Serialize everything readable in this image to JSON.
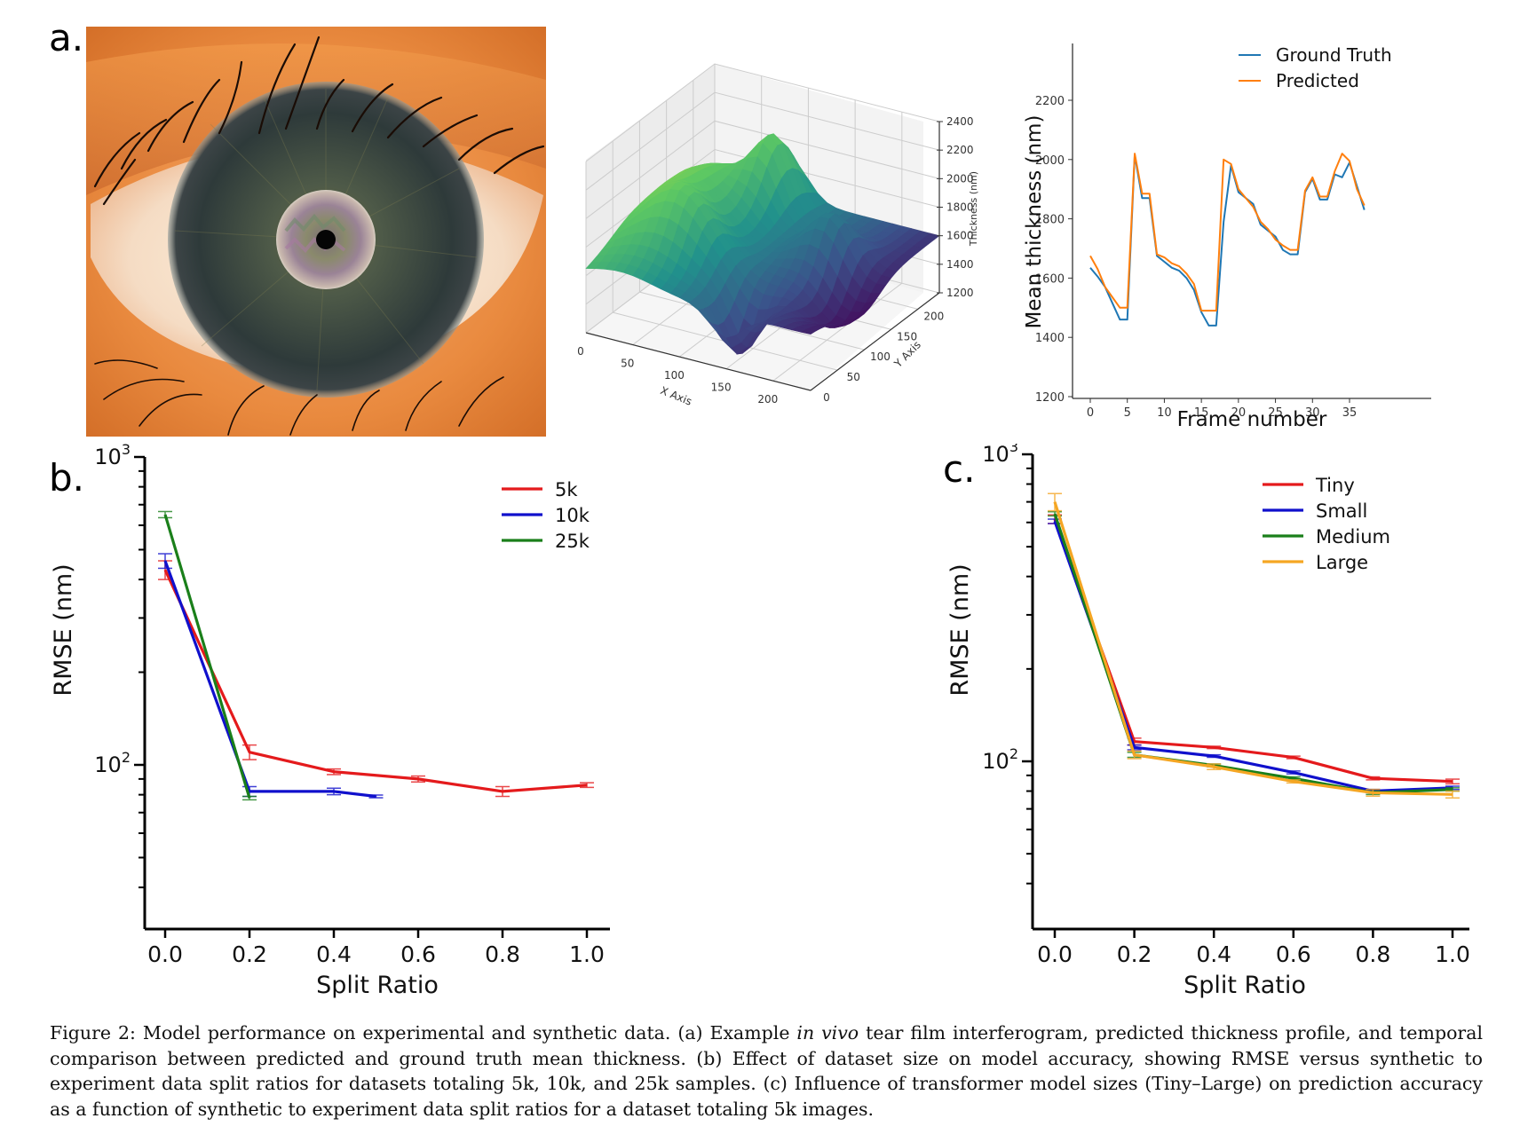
{
  "figure": {
    "panel_labels": {
      "a": "a.",
      "b": "b.",
      "c": "c."
    },
    "caption": {
      "lead": "Figure 2: Model performance on experimental and synthetic data. (a) Example ",
      "italic": "in vivo",
      "rest": " tear film interferogram, predicted thickness profile, and temporal comparison between predicted and ground truth mean thickness. (b) Effect of dataset size on model accuracy, showing RMSE versus synthetic to experiment data split ratios for datasets totaling 5k, 10k, and 25k samples. (c) Influence of transformer model sizes (Tiny–Large) on prediction accuracy as a function of synthetic to experiment data split ratios for a dataset totaling 5k images."
    },
    "eye_image": {
      "description": "in vivo tear film interferogram over eye photograph"
    }
  },
  "colors": {
    "ground_truth": "#1f77b4",
    "predicted": "#ff7f0e",
    "red": "#e41a1c",
    "blue": "#1010cc",
    "green": "#1a7f1a",
    "orange": "#f5a623"
  },
  "chart_data": [
    {
      "id": "a-surface",
      "type": "heatmap",
      "title": "",
      "xlabel": "X Axis",
      "ylabel": "Y Axis",
      "zlabel": "Thickness (nm)",
      "x_ticks": [
        "0",
        "50",
        "100",
        "150",
        "200"
      ],
      "y_ticks": [
        "0",
        "50",
        "100",
        "150",
        "200"
      ],
      "z_ticks": [
        "1200",
        "1400",
        "1600",
        "1800",
        "2000",
        "2200",
        "2400"
      ],
      "xlim": [
        0,
        240
      ],
      "ylim": [
        0,
        240
      ],
      "zlim": [
        1200,
        2400
      ],
      "colormap": "viridis",
      "note": "3D surface of predicted thickness profile"
    },
    {
      "id": "a-line",
      "type": "line",
      "title": "",
      "xlabel": "Frame number",
      "ylabel": "Mean thickness (nm)",
      "xlim": [
        -1.5,
        38.5
      ],
      "ylim": [
        1200,
        2380
      ],
      "x_ticks": [
        0,
        5,
        10,
        15,
        20,
        25,
        30,
        35
      ],
      "y_ticks": [
        1200,
        1400,
        1600,
        1800,
        2000,
        2200
      ],
      "legend": "top-right",
      "x": [
        0,
        1,
        2,
        3,
        4,
        5,
        6,
        7,
        8,
        9,
        10,
        11,
        12,
        13,
        14,
        15,
        16,
        17,
        18,
        19,
        20,
        21,
        22,
        23,
        24,
        25,
        26,
        27,
        28,
        29,
        30,
        31,
        32,
        33,
        34,
        35,
        36,
        37
      ],
      "series": [
        {
          "name": "Ground Truth",
          "color_key": "ground_truth",
          "values": [
            1635,
            1605,
            1570,
            1515,
            1460,
            1460,
            2015,
            1870,
            1870,
            1675,
            1655,
            1635,
            1625,
            1600,
            1560,
            1485,
            1440,
            1440,
            1790,
            1980,
            1890,
            1870,
            1850,
            1780,
            1760,
            1740,
            1695,
            1680,
            1680,
            1890,
            1935,
            1865,
            1865,
            1950,
            1940,
            1990,
            1910,
            1830
          ]
        },
        {
          "name": "Predicted",
          "color_key": "predicted",
          "values": [
            1675,
            1630,
            1570,
            1535,
            1500,
            1500,
            2020,
            1885,
            1885,
            1680,
            1670,
            1650,
            1640,
            1615,
            1580,
            1490,
            1490,
            1490,
            2000,
            1985,
            1900,
            1870,
            1840,
            1790,
            1765,
            1730,
            1710,
            1695,
            1695,
            1895,
            1940,
            1875,
            1875,
            1960,
            2020,
            1995,
            1900,
            1845
          ]
        }
      ]
    },
    {
      "id": "b",
      "type": "line",
      "title": "",
      "xlabel": "Split Ratio",
      "ylabel": "RMSE (nm)",
      "yscale": "log",
      "xlim": [
        -0.05,
        1.05
      ],
      "ylim": [
        30,
        1000
      ],
      "x_ticks": [
        "0.0",
        "0.2",
        "0.4",
        "0.6",
        "0.8",
        "1.0"
      ],
      "y_ticks_major": [
        {
          "value": 100,
          "base": "10",
          "exp": "2"
        },
        {
          "value": 1000,
          "base": "10",
          "exp": "3"
        }
      ],
      "legend": "top-right",
      "series": [
        {
          "name": "5k",
          "color_key": "red",
          "x": [
            0.0,
            0.2,
            0.4,
            0.6,
            0.8,
            1.0
          ],
          "values": [
            430,
            110,
            95,
            90,
            82,
            86
          ],
          "err": [
            30,
            6,
            2,
            2,
            3,
            1.5
          ]
        },
        {
          "name": "10k",
          "color_key": "blue",
          "x": [
            0.0,
            0.2,
            0.4,
            0.5
          ],
          "values": [
            460,
            82,
            82,
            79
          ],
          "err": [
            25,
            3,
            2,
            0.8
          ]
        },
        {
          "name": "25k",
          "color_key": "green",
          "x": [
            0.0,
            0.2
          ],
          "values": [
            650,
            78
          ],
          "err": [
            15,
            1
          ]
        }
      ]
    },
    {
      "id": "c",
      "type": "line",
      "title": "",
      "xlabel": "Split Ratio",
      "ylabel": "RMSE (nm)",
      "yscale": "log",
      "xlim": [
        -0.05,
        1.05
      ],
      "ylim": [
        30,
        1000
      ],
      "x_ticks": [
        "0.0",
        "0.2",
        "0.4",
        "0.6",
        "0.8",
        "1.0"
      ],
      "y_ticks_major": [
        {
          "value": 100,
          "base": "10",
          "exp": "2"
        },
        {
          "value": 1000,
          "base": "10",
          "exp": "3"
        }
      ],
      "legend": "top-right",
      "series": [
        {
          "name": "Tiny",
          "color_key": "red",
          "x": [
            0.0,
            0.2,
            0.4,
            0.6,
            0.8,
            1.0
          ],
          "values": [
            615,
            116,
            111,
            103,
            88,
            86
          ],
          "err": [
            20,
            3,
            1,
            1,
            1,
            1.5
          ]
        },
        {
          "name": "Small",
          "color_key": "blue",
          "x": [
            0.0,
            0.2,
            0.4,
            0.6,
            0.8,
            1.0
          ],
          "values": [
            605,
            111,
            104,
            92,
            80,
            82
          ],
          "err": [
            10,
            2,
            1,
            1,
            1,
            1
          ]
        },
        {
          "name": "Medium",
          "color_key": "green",
          "x": [
            0.0,
            0.2,
            0.4,
            0.6,
            0.8,
            1.0
          ],
          "values": [
            640,
            105,
            97,
            88,
            79,
            81
          ],
          "err": [
            10,
            2,
            1,
            1,
            1,
            1
          ]
        },
        {
          "name": "Large",
          "color_key": "orange",
          "x": [
            0.0,
            0.2,
            0.4,
            0.6,
            0.8,
            1.0
          ],
          "values": [
            700,
            105,
            96,
            86,
            79,
            78
          ],
          "err": [
            45,
            3,
            2,
            1,
            2,
            2
          ]
        }
      ]
    }
  ]
}
